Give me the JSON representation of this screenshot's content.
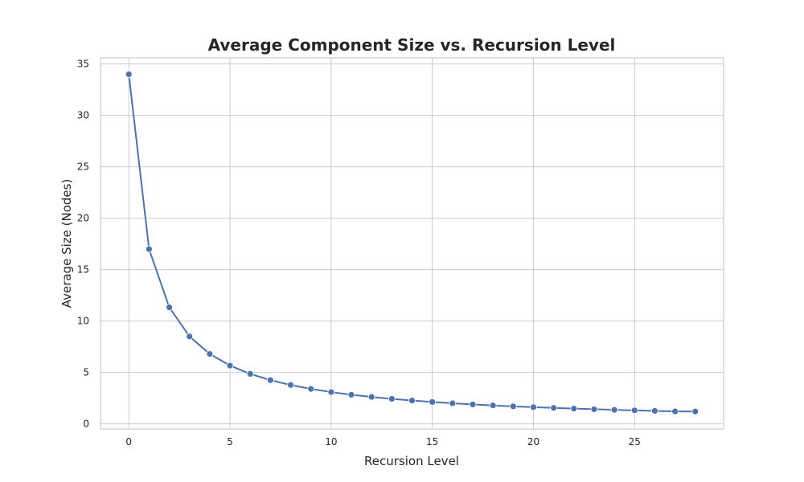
{
  "chart_data": {
    "type": "line",
    "title": "Average Component Size vs. Recursion Level",
    "xlabel": "Recursion Level",
    "ylabel": "Average Size (Nodes)",
    "xlim": [
      -1.4,
      29.4
    ],
    "ylim": [
      -0.5,
      35.6
    ],
    "xticks": [
      0,
      5,
      10,
      15,
      20,
      25
    ],
    "yticks": [
      0,
      5,
      10,
      15,
      20,
      25,
      30,
      35
    ],
    "grid": true,
    "series": [
      {
        "color": "#4c72b0",
        "marker": "circle",
        "x": [
          0,
          1,
          2,
          3,
          4,
          5,
          6,
          7,
          8,
          9,
          10,
          11,
          12,
          13,
          14,
          15,
          16,
          17,
          18,
          19,
          20,
          21,
          22,
          23,
          24,
          25,
          26,
          27,
          28
        ],
        "y": [
          34.0,
          17.0,
          11.33,
          8.5,
          6.8,
          5.67,
          4.86,
          4.25,
          3.78,
          3.4,
          3.09,
          2.83,
          2.62,
          2.43,
          2.27,
          2.13,
          2.0,
          1.89,
          1.79,
          1.7,
          1.62,
          1.55,
          1.48,
          1.42,
          1.36,
          1.31,
          1.26,
          1.21,
          1.2
        ]
      }
    ]
  }
}
